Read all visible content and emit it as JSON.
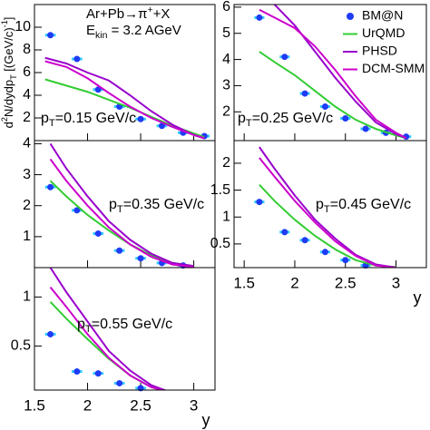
{
  "chart_data": [
    {
      "type": "line",
      "title": [
        "Ar+Pb→π",
        {
          "text": "+",
          "shift": "sup"
        },
        "+X"
      ],
      "subtitle": [
        "E",
        {
          "text": "kin",
          "shift": "sub"
        },
        " = 3.2 AGeV"
      ],
      "ylabel": [
        "d",
        {
          "text": "2",
          "shift": "sup"
        },
        "N/dydp",
        {
          "text": "T",
          "shift": "sub"
        },
        " [(GeV/c)",
        {
          "text": "-1",
          "shift": "sup"
        },
        "]"
      ],
      "annotation": [
        "p",
        {
          "text": "T",
          "shift": "sub"
        },
        "=0.15 GeV/c"
      ],
      "xlim": [
        1.5,
        3.2
      ],
      "xticks": [
        1.5,
        2,
        2.5,
        3
      ],
      "show_xtick_labels": false,
      "ylim": [
        0,
        12
      ],
      "yticks": [
        2,
        4,
        6,
        8,
        10
      ],
      "series": [
        {
          "type": "scatter",
          "color": "#1f3cf5",
          "err_color": "#33ccff",
          "xerr": 0.05,
          "x": [
            1.65,
            1.9,
            2.1,
            2.3,
            2.5,
            2.7,
            2.9,
            3.1
          ],
          "values": [
            9.3,
            7.2,
            4.5,
            3.0,
            1.9,
            1.3,
            0.7,
            0.4
          ]
        },
        {
          "color": "#33cc33",
          "x": [
            1.6,
            2.0,
            2.4,
            2.8,
            3.1
          ],
          "values": [
            5.4,
            4.3,
            2.9,
            1.3,
            0.3
          ]
        },
        {
          "color": "#9900cc",
          "x": [
            1.6,
            1.8,
            2.0,
            2.2,
            2.4,
            2.6,
            2.8,
            3.0,
            3.1
          ],
          "values": [
            7.3,
            6.8,
            6.0,
            5.3,
            4.0,
            2.6,
            1.4,
            0.5,
            0.2
          ]
        },
        {
          "color": "#cc00cc",
          "x": [
            1.6,
            1.8,
            2.0,
            2.2,
            2.4,
            2.6,
            2.8,
            3.0,
            3.1
          ],
          "values": [
            7.0,
            6.5,
            5.5,
            4.2,
            3.0,
            2.0,
            1.2,
            0.5,
            0.2
          ]
        }
      ]
    },
    {
      "type": "line",
      "annotation": [
        "p",
        {
          "text": "T",
          "shift": "sub"
        },
        "=0.25 GeV/c"
      ],
      "legend": "upper right",
      "xlim": [
        1.4,
        3.3
      ],
      "xticks": [
        1.5,
        2,
        2.5,
        3
      ],
      "show_xtick_labels": false,
      "ylim": [
        0.9,
        6.1
      ],
      "yticks": [
        2,
        3,
        4,
        5,
        6
      ],
      "series": [
        {
          "name": "BM@N",
          "type": "scatter",
          "color": "#1f3cf5",
          "err_color": "#33ccff",
          "xerr": 0.05,
          "x": [
            1.65,
            1.9,
            2.1,
            2.3,
            2.5,
            2.7,
            2.9,
            3.1
          ],
          "values": [
            5.6,
            4.1,
            2.7,
            2.2,
            1.75,
            1.35,
            1.2,
            1.05
          ]
        },
        {
          "name": "UrQMD",
          "color": "#33cc33",
          "x": [
            1.65,
            1.8,
            2.0,
            2.2,
            2.4,
            2.6,
            2.8,
            3.0,
            3.1
          ],
          "values": [
            4.3,
            3.9,
            3.4,
            2.8,
            2.2,
            1.7,
            1.35,
            1.1,
            1.0
          ]
        },
        {
          "name": "PHSD",
          "color": "#9900cc",
          "x": [
            1.65,
            1.8,
            2.0,
            2.2,
            2.4,
            2.6,
            2.8,
            3.0,
            3.1
          ],
          "values": [
            6.8,
            6.1,
            5.3,
            4.3,
            3.3,
            2.4,
            1.6,
            1.15,
            1.0
          ]
        },
        {
          "name": "DCM-SMM",
          "color": "#cc00cc",
          "x": [
            1.65,
            1.8,
            2.0,
            2.2,
            2.4,
            2.6,
            2.8,
            3.0,
            3.1
          ],
          "values": [
            5.9,
            5.6,
            5.2,
            4.5,
            3.6,
            2.6,
            1.7,
            1.2,
            1.0
          ]
        }
      ]
    },
    {
      "type": "line",
      "annotation": [
        "p",
        {
          "text": "T",
          "shift": "sub"
        },
        "=0.35 GeV/c"
      ],
      "xlim": [
        1.5,
        3.2
      ],
      "xticks": [
        1.5,
        2,
        2.5,
        3
      ],
      "show_xtick_labels": false,
      "ylim": [
        0,
        4.1
      ],
      "yticks": [
        1,
        2,
        3,
        4
      ],
      "series": [
        {
          "type": "scatter",
          "color": "#1f3cf5",
          "err_color": "#33ccff",
          "xerr": 0.05,
          "x": [
            1.65,
            1.9,
            2.1,
            2.3,
            2.5,
            2.7,
            2.9
          ],
          "values": [
            2.6,
            1.85,
            1.1,
            0.55,
            0.3,
            0.15,
            0.07
          ]
        },
        {
          "color": "#33cc33",
          "x": [
            1.65,
            1.8,
            2.0,
            2.2,
            2.4,
            2.6,
            2.8,
            3.0
          ],
          "values": [
            2.8,
            2.3,
            1.7,
            1.2,
            0.75,
            0.4,
            0.15,
            0.05
          ]
        },
        {
          "color": "#9900cc",
          "x": [
            1.65,
            1.8,
            2.0,
            2.2,
            2.4,
            2.6,
            2.8,
            3.0
          ],
          "values": [
            4.0,
            3.2,
            2.3,
            1.5,
            0.9,
            0.45,
            0.15,
            0.05
          ]
        },
        {
          "color": "#cc00cc",
          "x": [
            1.65,
            1.8,
            2.0,
            2.2,
            2.4,
            2.6,
            2.8,
            3.0
          ],
          "values": [
            3.5,
            2.8,
            2.0,
            1.3,
            0.75,
            0.35,
            0.1,
            0.02
          ]
        }
      ]
    },
    {
      "type": "line",
      "annotation": [
        "p",
        {
          "text": "T",
          "shift": "sub"
        },
        "=0.45 GeV/c"
      ],
      "xlabel": "y",
      "xlim": [
        1.4,
        3.3
      ],
      "xticks": [
        1.5,
        2,
        2.5,
        3
      ],
      "show_xtick_labels": true,
      "ylim": [
        0.06,
        2.42
      ],
      "yticks": [
        0.5,
        1,
        1.5,
        2
      ],
      "series": [
        {
          "type": "scatter",
          "color": "#1f3cf5",
          "err_color": "#33ccff",
          "xerr": 0.05,
          "x": [
            1.65,
            1.9,
            2.1,
            2.3,
            2.5,
            2.7
          ],
          "values": [
            1.28,
            0.72,
            0.57,
            0.35,
            0.2,
            0.1
          ]
        },
        {
          "color": "#33cc33",
          "x": [
            1.65,
            1.8,
            2.0,
            2.2,
            2.4,
            2.6,
            2.8,
            3.0
          ],
          "values": [
            1.6,
            1.3,
            0.95,
            0.65,
            0.4,
            0.2,
            0.1,
            0.07
          ]
        },
        {
          "color": "#9900cc",
          "x": [
            1.65,
            1.8,
            2.0,
            2.2,
            2.4,
            2.6,
            2.8,
            3.0
          ],
          "values": [
            2.3,
            1.9,
            1.4,
            0.95,
            0.6,
            0.3,
            0.12,
            0.06
          ]
        },
        {
          "color": "#cc00cc",
          "x": [
            1.65,
            1.8,
            2.0,
            2.2,
            2.4,
            2.6,
            2.8,
            3.0
          ],
          "values": [
            2.1,
            1.75,
            1.3,
            0.9,
            0.55,
            0.28,
            0.1,
            0.06
          ]
        }
      ]
    },
    {
      "type": "line",
      "annotation": [
        "p",
        {
          "text": "T",
          "shift": "sub"
        },
        "=0.55 GeV/c"
      ],
      "xlabel": "y",
      "xlim": [
        1.5,
        3.2
      ],
      "xticks": [
        1.5,
        2,
        2.5,
        3
      ],
      "show_xtick_labels": true,
      "ylim": [
        0.05,
        1.3
      ],
      "yticks": [
        0.5,
        1
      ],
      "series": [
        {
          "type": "scatter",
          "color": "#1f3cf5",
          "err_color": "#33ccff",
          "xerr": 0.05,
          "x": [
            1.65,
            1.9,
            2.1,
            2.3,
            2.5
          ],
          "values": [
            0.62,
            0.24,
            0.22,
            0.12,
            0.07
          ]
        },
        {
          "color": "#33cc33",
          "x": [
            1.65,
            1.8,
            2.0,
            2.2,
            2.4,
            2.6,
            2.8
          ],
          "values": [
            0.95,
            0.78,
            0.57,
            0.37,
            0.2,
            0.08,
            0.02
          ]
        },
        {
          "color": "#9900cc",
          "x": [
            1.65,
            1.8,
            2.0,
            2.2,
            2.4,
            2.6,
            2.8
          ],
          "values": [
            1.3,
            1.05,
            0.75,
            0.45,
            0.25,
            0.1,
            0.02
          ]
        },
        {
          "color": "#cc00cc",
          "x": [
            1.65,
            1.8,
            2.0,
            2.2,
            2.4,
            2.6,
            2.8
          ],
          "values": [
            1.1,
            0.9,
            0.62,
            0.38,
            0.2,
            0.08,
            0.02
          ]
        }
      ]
    }
  ]
}
